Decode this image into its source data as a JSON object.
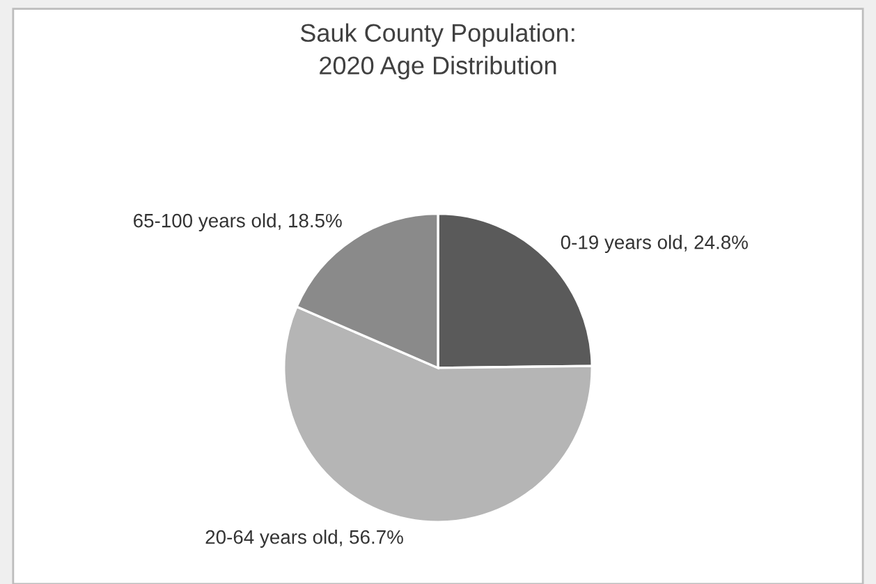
{
  "chart_data": {
    "type": "pie",
    "title": "Sauk County Population:\n2020 Age Distribution",
    "categories": [
      "0-19 years old",
      "20-64 years old",
      "65-100 years old"
    ],
    "values": [
      24.8,
      56.7,
      18.5
    ],
    "value_labels": [
      "24.8%",
      "56.7%",
      "18.5%"
    ],
    "colors": [
      "#5a5a5a",
      "#b5b5b5",
      "#8a8a8a"
    ]
  }
}
